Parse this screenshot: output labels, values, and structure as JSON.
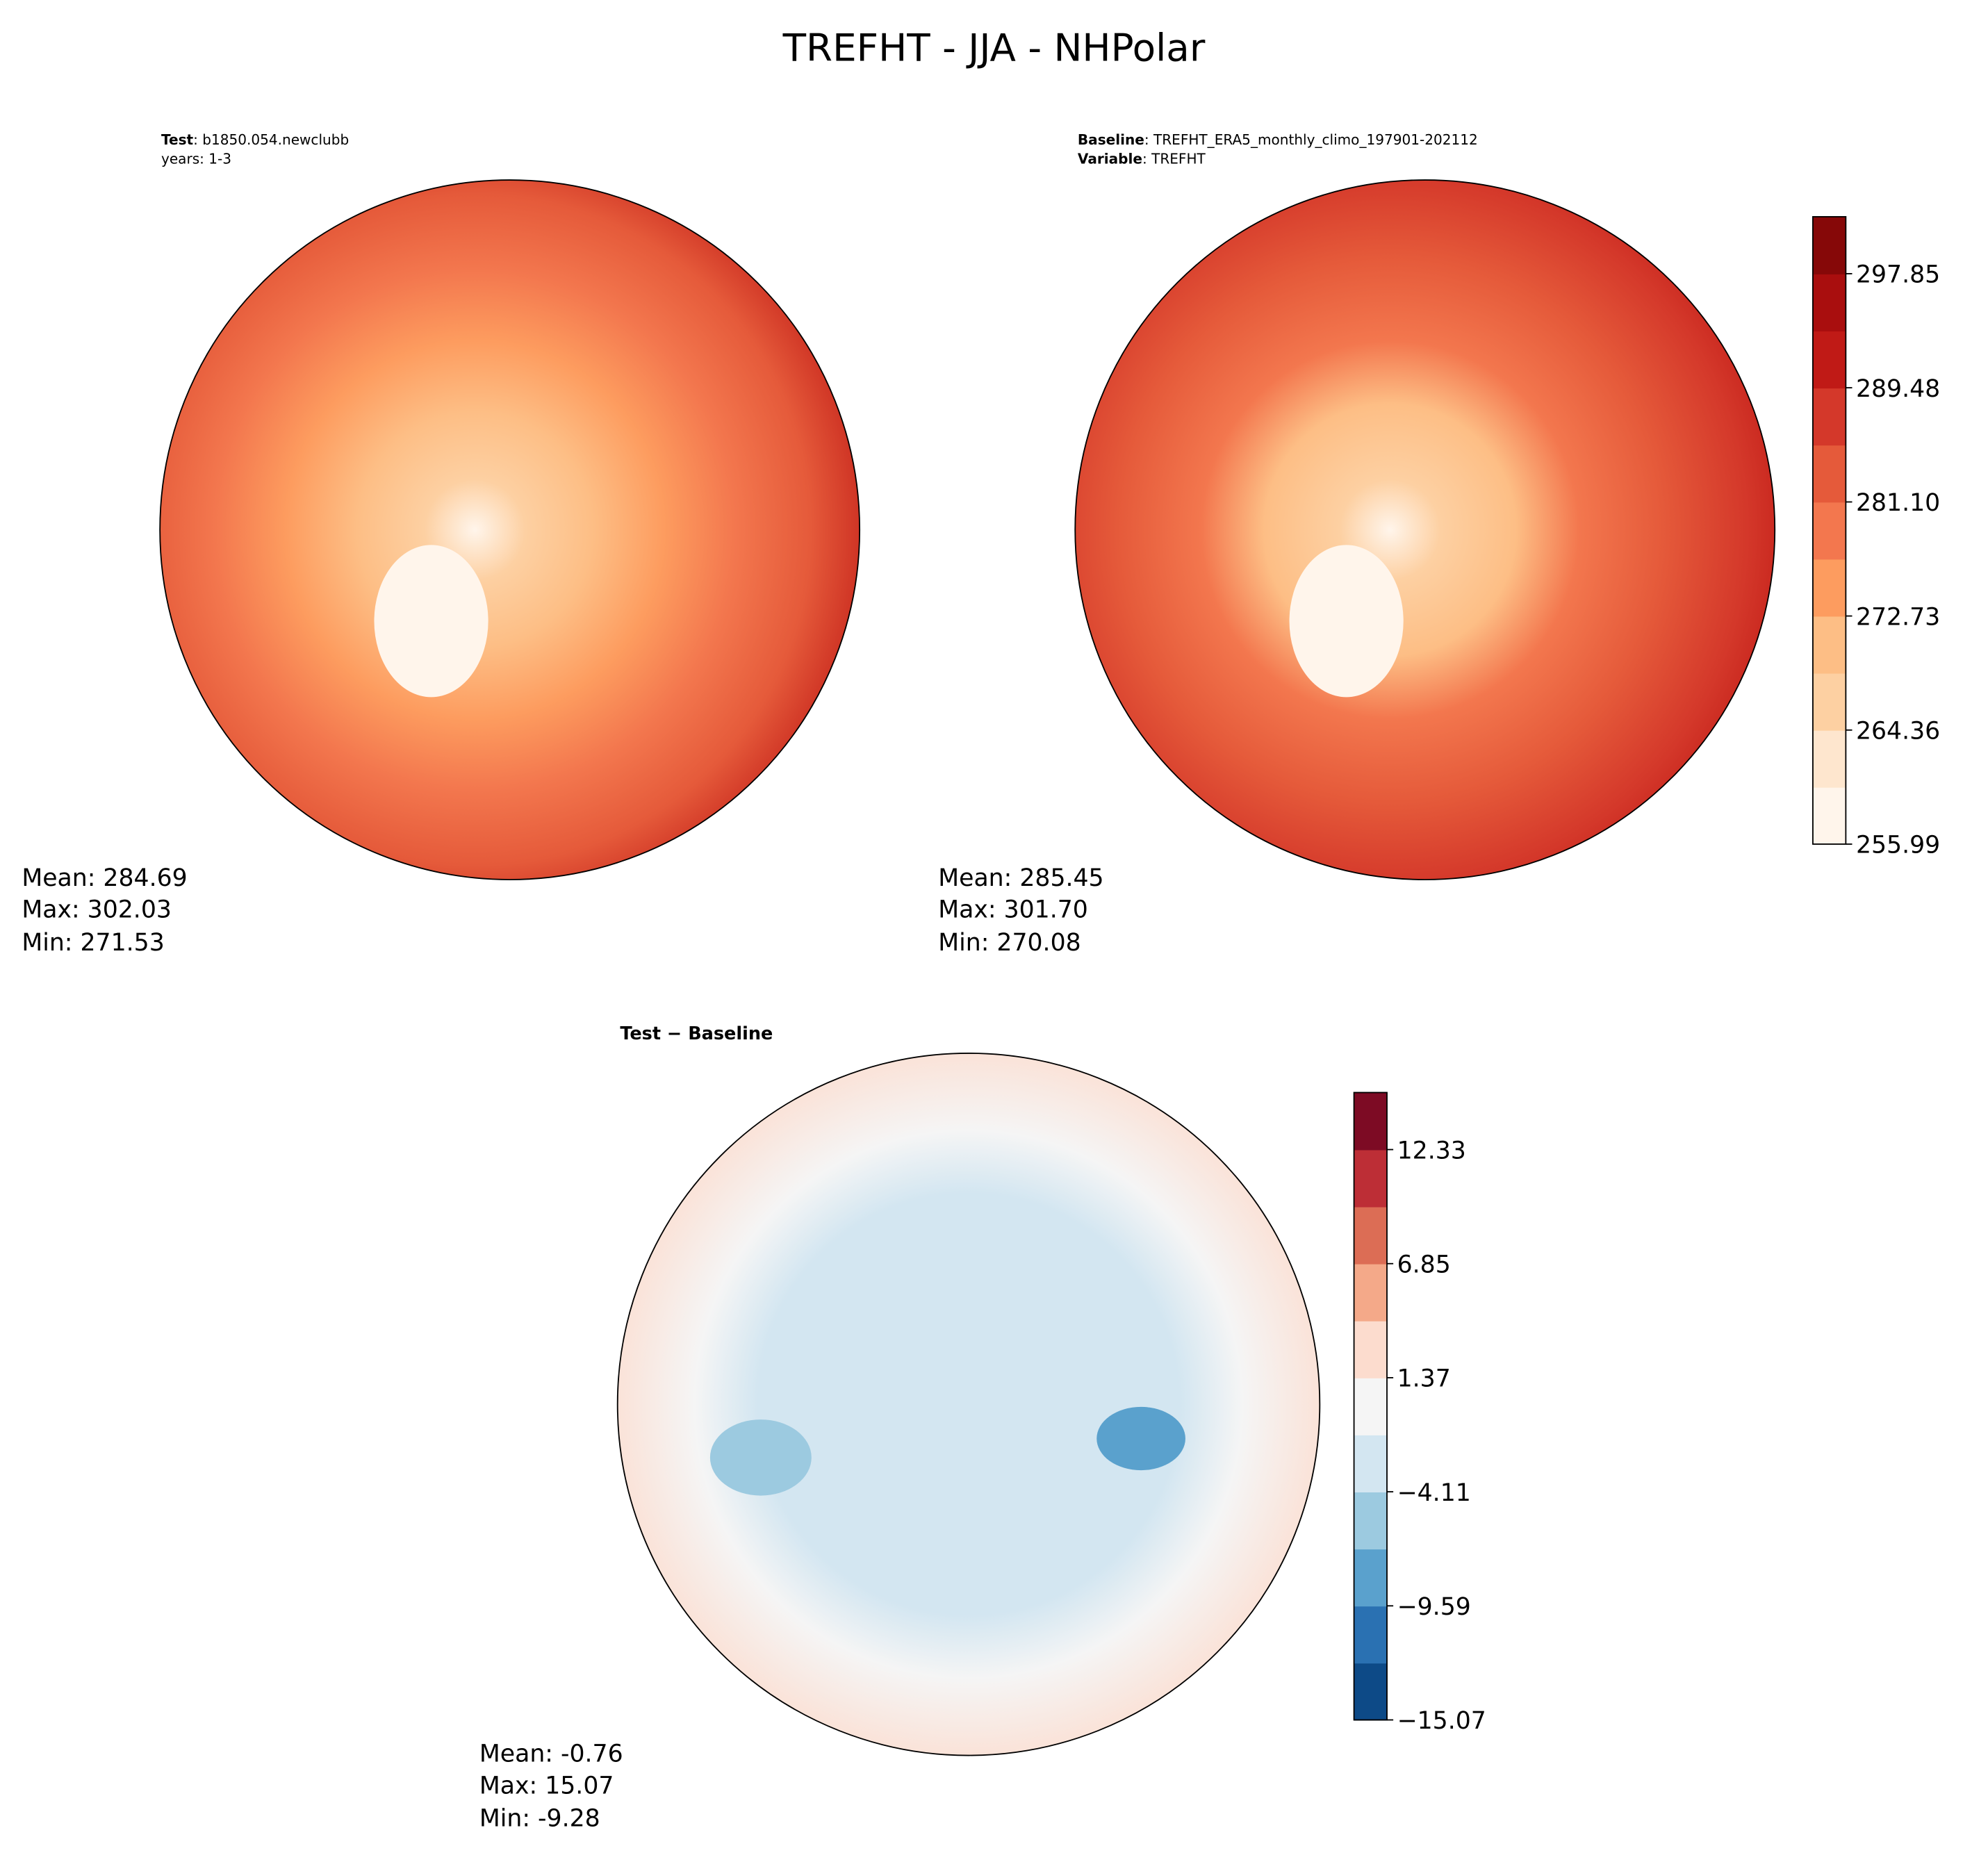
{
  "title": "TREFHT - JJA - NHPolar",
  "panels": [
    {
      "header": [
        {
          "key": "Test",
          "value": ": b1850.054.newclubb"
        },
        {
          "value": "years: 1-3"
        }
      ],
      "stats": [
        "Mean: 284.69",
        "Max: 302.03",
        "Min: 271.53"
      ]
    },
    {
      "header": [
        {
          "key": "Baseline",
          "value": ": TREFHT_ERA5_monthly_climo_197901-202112"
        },
        {
          "key": "Variable",
          "value": ": TREFHT"
        }
      ],
      "stats": [
        "Mean: 285.45",
        "Max: 301.70",
        "Min: 270.08"
      ]
    },
    {
      "header": [
        {
          "key": "Test − Baseline"
        }
      ],
      "stats": [
        "Mean: -0.76",
        "Max: 15.07",
        "Min: -9.28"
      ]
    }
  ],
  "colorbars": [
    {
      "lim": [
        255.99,
        302.03
      ],
      "ticks": [
        255.99,
        264.36,
        272.73,
        {
          "value": 281.1,
          "label": "281.10"
        },
        289.48,
        297.85
      ],
      "colors": [
        "#fff5eb",
        "#fee6ce",
        "#fdd0a2",
        "#fdbe85",
        "#fd9c5f",
        "#f3774e",
        "#e55a3a",
        "#d4382a",
        "#c01a16",
        "#a90e0e",
        "#860808"
      ]
    },
    {
      "lim": [
        -15.07,
        15.07
      ],
      "ticks": [
        {
          "value": -15.07,
          "label": "−15.07"
        },
        {
          "value": -9.59,
          "label": "−9.59"
        },
        {
          "value": -4.11,
          "label": "−4.11"
        },
        1.37,
        6.85,
        12.33
      ],
      "colors": [
        "#0d4a87",
        "#2a71b2",
        "#5aa1cd",
        "#9ccae0",
        "#d3e6f1",
        "#f5f5f5",
        "#fcdcce",
        "#f4a989",
        "#dc6d55",
        "#bd2e36",
        "#7d0b24"
      ]
    }
  ]
}
